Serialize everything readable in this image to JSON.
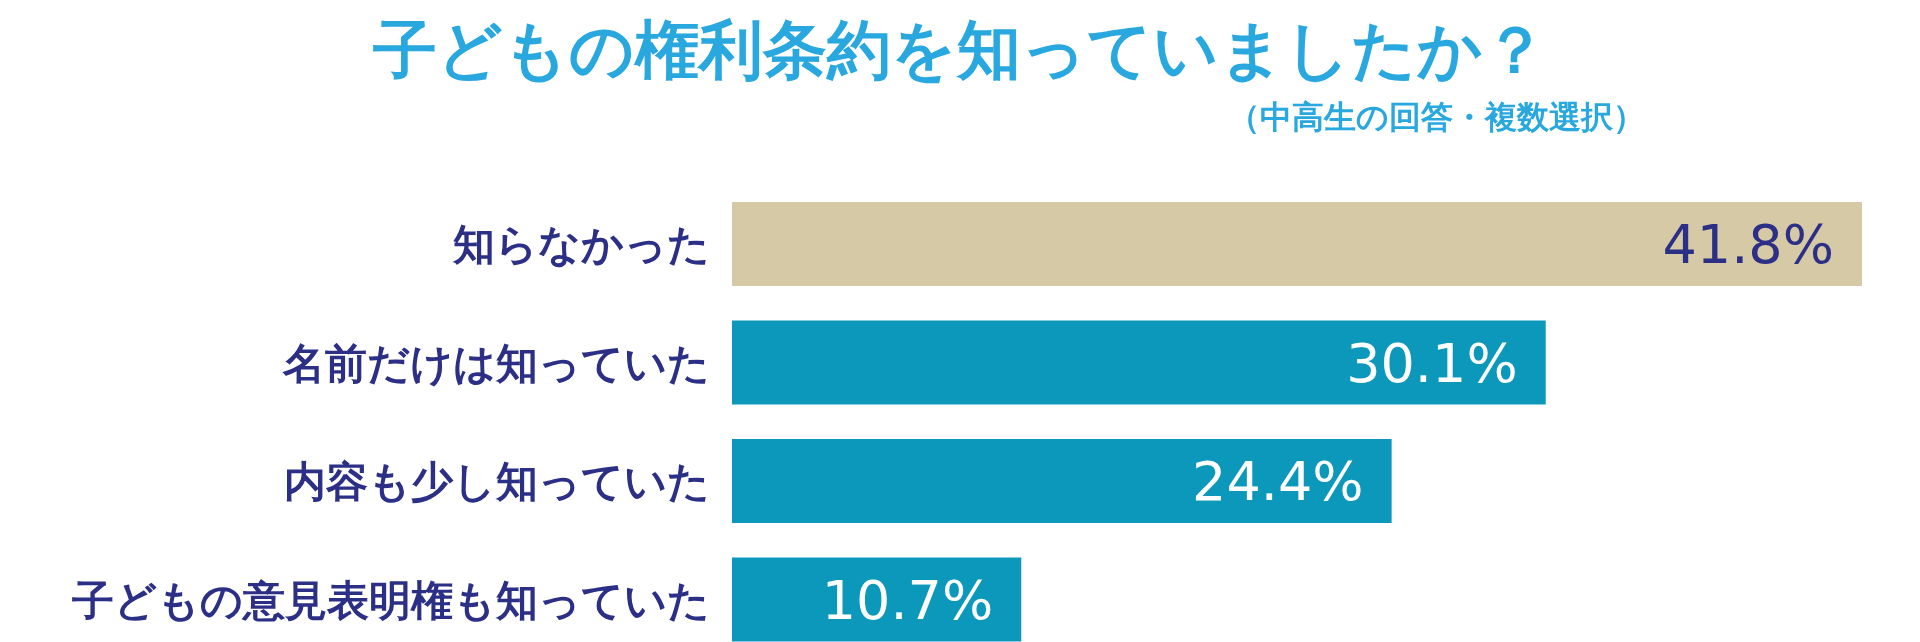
{
  "chart_data": {
    "type": "bar",
    "orientation": "horizontal",
    "title": "子どもの権利条約を知っていましたか？",
    "subtitle": "（中高生の回答・複数選択）",
    "categories": [
      "知らなかった",
      "名前だけは知っていた",
      "内容も少し知っていた",
      "子どもの意見表明権も知っていた"
    ],
    "values": [
      41.8,
      30.1,
      24.4,
      10.7
    ],
    "colors": [
      "#d6c9a6",
      "#0b98bb",
      "#0b98bb",
      "#0b98bb"
    ],
    "value_labels": [
      "41.8%",
      "30.1%",
      "24.4%",
      "10.7%"
    ]
  }
}
